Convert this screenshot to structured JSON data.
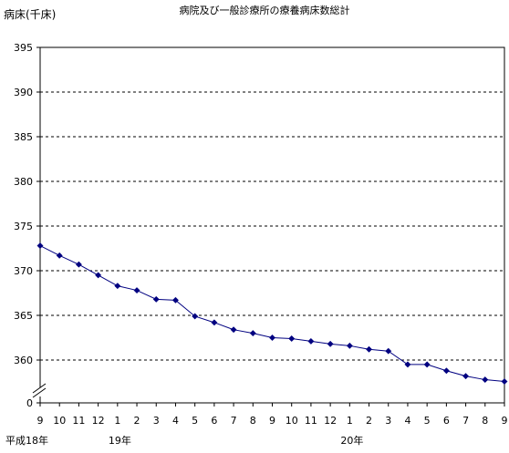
{
  "chart_data": {
    "type": "line",
    "title": "病院及び一般診療所の療養病床数総計",
    "ylabel": "病床(千床)",
    "xlabel": "",
    "y_ticks": [
      395,
      390,
      385,
      380,
      375,
      370,
      365,
      360,
      0
    ],
    "ylim": [
      357,
      395
    ],
    "axis_break": true,
    "grid": "horizontal-dashed",
    "categories": [
      "9",
      "10",
      "11",
      "12",
      "1",
      "2",
      "3",
      "4",
      "5",
      "6",
      "7",
      "8",
      "9",
      "10",
      "11",
      "12",
      "1",
      "2",
      "3",
      "4",
      "5",
      "6",
      "7",
      "8",
      "9"
    ],
    "year_labels": [
      {
        "index": 0,
        "text": "平成18年"
      },
      {
        "index": 4,
        "text": "19年"
      },
      {
        "index": 16,
        "text": "20年"
      }
    ],
    "series": [
      {
        "name": "",
        "color": "#000080",
        "marker": "diamond",
        "values": [
          372.8,
          371.7,
          370.7,
          369.5,
          368.3,
          367.8,
          366.8,
          366.7,
          364.9,
          364.2,
          363.4,
          363.0,
          362.5,
          362.4,
          362.1,
          361.8,
          361.6,
          361.2,
          361.0,
          359.5,
          359.5,
          358.8,
          358.2,
          357.8,
          357.6
        ]
      }
    ]
  }
}
